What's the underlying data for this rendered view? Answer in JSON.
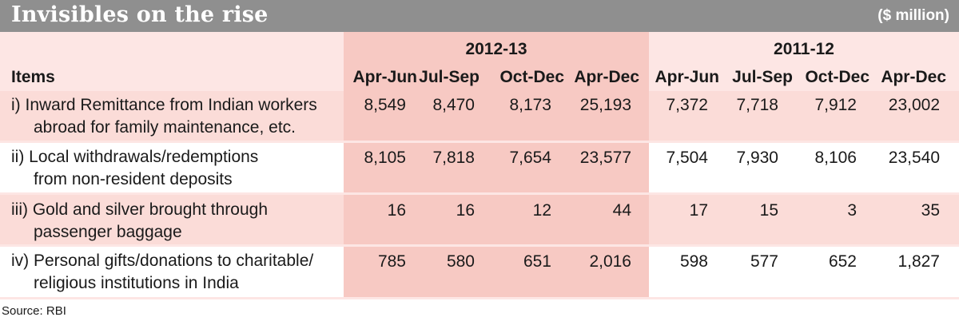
{
  "header": {
    "title": "Invisibles on the rise",
    "unit": "($ million)"
  },
  "table": {
    "items_label": "Items",
    "periods": [
      "2012-13",
      "2011-12"
    ],
    "columns": [
      "Apr-Jun",
      "Jul-Sep",
      "Oct-Dec",
      "Apr-Dec",
      "Apr-Jun",
      "Jul-Sep",
      "Oct-Dec",
      "Apr-Dec"
    ],
    "rows": [
      {
        "line1": "i) Inward Remittance from Indian workers",
        "line2": "abroad for family maintenance, etc.",
        "values": [
          "8,549",
          "8,470",
          "8,173",
          "25,193",
          "7,372",
          "7,718",
          "7,912",
          "23,002"
        ]
      },
      {
        "line1": "ii) Local withdrawals/redemptions",
        "line2": "from non-resident deposits",
        "values": [
          "8,105",
          "7,818",
          "7,654",
          "23,577",
          "7,504",
          "7,930",
          "8,106",
          "23,540"
        ]
      },
      {
        "line1": "iii) Gold and silver brought through",
        "line2": "passenger baggage",
        "values": [
          "16",
          "16",
          "12",
          "44",
          "17",
          "15",
          "3",
          "35"
        ]
      },
      {
        "line1": "iv) Personal gifts/donations to charitable/",
        "line2": "religious institutions in India",
        "values": [
          "785",
          "580",
          "651",
          "2,016",
          "598",
          "577",
          "652",
          "1,827"
        ]
      }
    ]
  },
  "footer": {
    "source": "Source: RBI"
  },
  "colors": {
    "title_bar": "#8f8f8f",
    "header_band": "#fde6e4",
    "highlight_column": "#f7c9c3",
    "alternate_row": "#fbdcd8"
  }
}
